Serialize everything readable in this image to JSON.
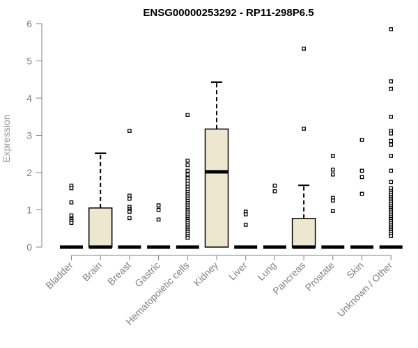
{
  "chart_data": {
    "type": "box",
    "title": "ENSG00000253292 - RP11-298P6.5",
    "ylabel": "Expression",
    "xlabel": "",
    "ylim": [
      0,
      6
    ],
    "yticks": [
      0,
      1,
      2,
      3,
      4,
      5,
      6
    ],
    "colors": {
      "box_fill": "#ede7cf",
      "axis": "#808080",
      "box_stroke": "#000000"
    },
    "categories": [
      "Bladder",
      "Brain",
      "Breast",
      "Gastric",
      "Hematopoietic cells",
      "Kidney",
      "Liver",
      "Lung",
      "Pancreas",
      "Prostate",
      "Skin",
      "Unknown / Other"
    ],
    "boxes": [
      {
        "q1": 0,
        "median": 0,
        "q3": 0,
        "lower_whisker": 0,
        "upper_whisker": 0,
        "outliers": [
          1.65,
          1.58,
          1.2,
          0.85,
          0.75,
          0.7,
          0.65
        ]
      },
      {
        "q1": 0,
        "median": 0,
        "q3": 1.05,
        "lower_whisker": 0,
        "upper_whisker": 2.52,
        "outliers": []
      },
      {
        "q1": 0,
        "median": 0,
        "q3": 0,
        "lower_whisker": 0,
        "upper_whisker": 0,
        "outliers": [
          3.12,
          1.38,
          1.3,
          1.08,
          1.02,
          0.98,
          0.95,
          0.78
        ]
      },
      {
        "q1": 0,
        "median": 0,
        "q3": 0,
        "lower_whisker": 0,
        "upper_whisker": 0,
        "outliers": [
          1.12,
          1.0,
          0.74
        ]
      },
      {
        "q1": 0,
        "median": 0,
        "q3": 0,
        "lower_whisker": 0,
        "upper_whisker": 0,
        "outliers": [
          3.55,
          2.32,
          2.2,
          2.05,
          1.95,
          1.85,
          1.78,
          1.7,
          1.62,
          1.55,
          1.48,
          1.42,
          1.36,
          1.3,
          1.24,
          1.18,
          1.12,
          1.06,
          1.0,
          0.95,
          0.9,
          0.85,
          0.8,
          0.75,
          0.7,
          0.65,
          0.6,
          0.55,
          0.5,
          0.45,
          0.4,
          0.35,
          0.3,
          0.25
        ]
      },
      {
        "q1": 0,
        "median": 2.02,
        "q3": 3.17,
        "lower_whisker": 0,
        "upper_whisker": 4.43,
        "outliers": []
      },
      {
        "q1": 0,
        "median": 0,
        "q3": 0,
        "lower_whisker": 0,
        "upper_whisker": 0,
        "outliers": [
          0.95,
          0.88,
          0.6
        ]
      },
      {
        "q1": 0,
        "median": 0,
        "q3": 0,
        "lower_whisker": 0,
        "upper_whisker": 0,
        "outliers": [
          1.65,
          1.5
        ]
      },
      {
        "q1": 0,
        "median": 0,
        "q3": 0.77,
        "lower_whisker": 0,
        "upper_whisker": 1.66,
        "outliers": [
          5.33,
          3.18
        ]
      },
      {
        "q1": 0,
        "median": 0,
        "q3": 0,
        "lower_whisker": 0,
        "upper_whisker": 0,
        "outliers": [
          2.45,
          2.08,
          1.95,
          1.32,
          1.25,
          0.97
        ]
      },
      {
        "q1": 0,
        "median": 0,
        "q3": 0,
        "lower_whisker": 0,
        "upper_whisker": 0,
        "outliers": [
          2.88,
          2.05,
          1.88,
          1.43
        ]
      },
      {
        "q1": 0,
        "median": 0,
        "q3": 0,
        "lower_whisker": 0,
        "upper_whisker": 0,
        "outliers": [
          5.85,
          4.45,
          4.25,
          3.5,
          3.12,
          3.05,
          2.85,
          2.75,
          2.45,
          2.05,
          1.75,
          1.58,
          1.5,
          1.45,
          1.4,
          1.35,
          1.3,
          1.25,
          1.2,
          1.15,
          1.1,
          1.05,
          1.0,
          0.95,
          0.9,
          0.85,
          0.8,
          0.75,
          0.7,
          0.65,
          0.6,
          0.55,
          0.5,
          0.45,
          0.4,
          0.35,
          0.3
        ]
      }
    ]
  }
}
